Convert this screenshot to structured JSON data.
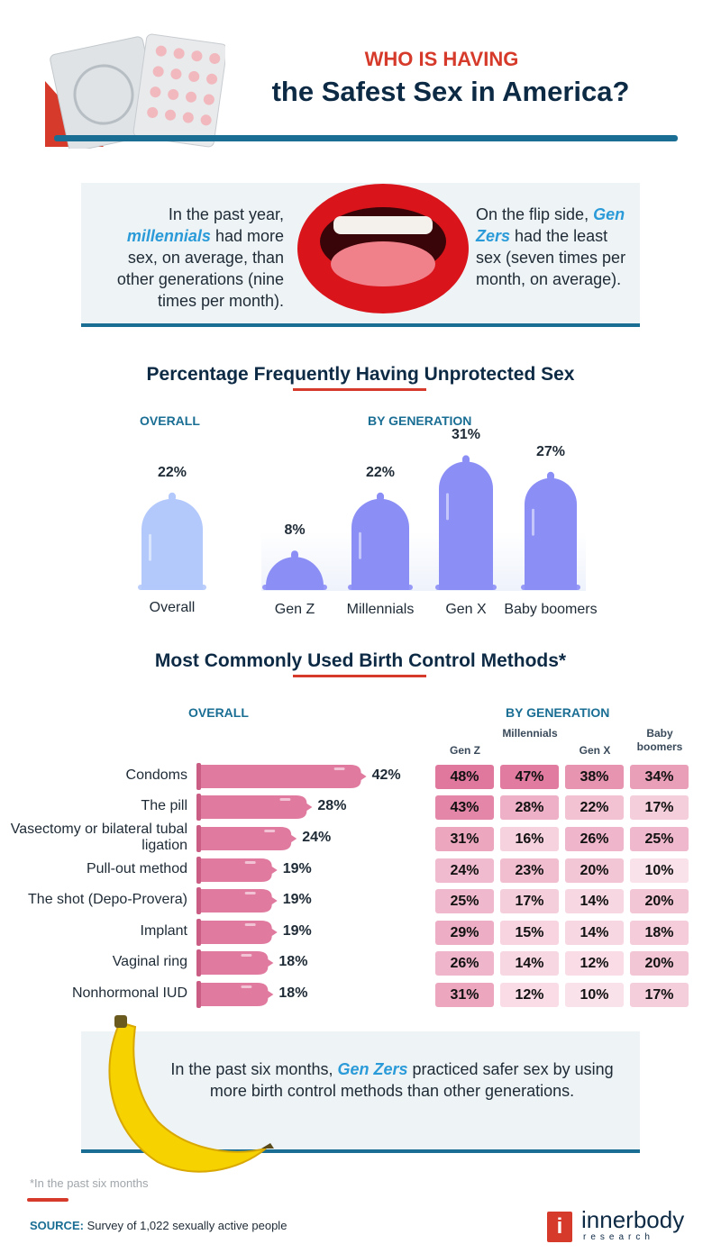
{
  "header": {
    "kicker": "WHO IS HAVING",
    "title": "the Safest Sex in America?"
  },
  "info": {
    "left": {
      "pre": "In the past year, ",
      "highlight": "millennials",
      "post": " had more sex, on average, than other generations (nine times per month)."
    },
    "right": {
      "pre": "On the flip side, ",
      "highlight": "Gen Zers",
      "post": " had the least sex (seven times per month, on average)."
    }
  },
  "colors": {
    "accent_red": "#d63a2a",
    "navy": "#0d2a45",
    "teal": "#1a6e94",
    "highlight_blue": "#2a9bd8",
    "overall_condom": "#b3c8fb",
    "generation_condom": "#8b8ef5",
    "bar_pink": "#e07a9f"
  },
  "chart_data": [
    {
      "type": "bar",
      "title": "Percentage Frequently Having Unprotected Sex",
      "overall": {
        "label": "OVERALL",
        "category": "Overall",
        "value": 22,
        "value_label": "22%"
      },
      "by_generation_label": "BY GENERATION",
      "categories": [
        "Gen Z",
        "Millennials",
        "Gen X",
        "Baby boomers"
      ],
      "values": [
        8,
        22,
        31,
        27
      ],
      "value_labels": [
        "8%",
        "22%",
        "31%",
        "27%"
      ],
      "mark": "condom-shaped bars"
    },
    {
      "type": "bar",
      "orientation": "horizontal",
      "title": "Most Commonly Used Birth Control Methods*",
      "overall_label": "OVERALL",
      "categories": [
        "Condoms",
        "The pill",
        "Vasectomy or bilateral tubal ligation",
        "Pull-out method",
        "The shot (Depo-Provera)",
        "Implant",
        "Vaginal ring",
        "Nonhormonal IUD"
      ],
      "values": [
        42,
        28,
        24,
        19,
        19,
        19,
        18,
        18
      ],
      "value_labels": [
        "42%",
        "28%",
        "24%",
        "19%",
        "19%",
        "19%",
        "18%",
        "18%"
      ]
    },
    {
      "type": "heatmap",
      "title": "BY GENERATION",
      "columns": [
        "Gen Z",
        "Millennials",
        "Gen X",
        "Baby boomers"
      ],
      "rows": [
        "Condoms",
        "The pill",
        "Vasectomy or bilateral tubal ligation",
        "Pull-out method",
        "The shot (Depo-Provera)",
        "Implant",
        "Vaginal ring",
        "Nonhormonal IUD"
      ],
      "values": [
        [
          48,
          47,
          38,
          34
        ],
        [
          43,
          28,
          22,
          17
        ],
        [
          31,
          16,
          26,
          25
        ],
        [
          24,
          23,
          20,
          10
        ],
        [
          25,
          17,
          14,
          20
        ],
        [
          29,
          15,
          14,
          18
        ],
        [
          26,
          14,
          12,
          20
        ],
        [
          31,
          12,
          10,
          17
        ]
      ]
    }
  ],
  "callout": {
    "pre": "In the past six months, ",
    "highlight": "Gen Zers",
    "post": " practiced safer sex by using more birth control methods than other generations."
  },
  "footer": {
    "footnote": "*In the past six months",
    "source_label": "SOURCE:",
    "source_text": " Survey of 1,022 sexually active people",
    "logo_name": "innerbody",
    "logo_sub": "research",
    "logo_letter": "i"
  }
}
